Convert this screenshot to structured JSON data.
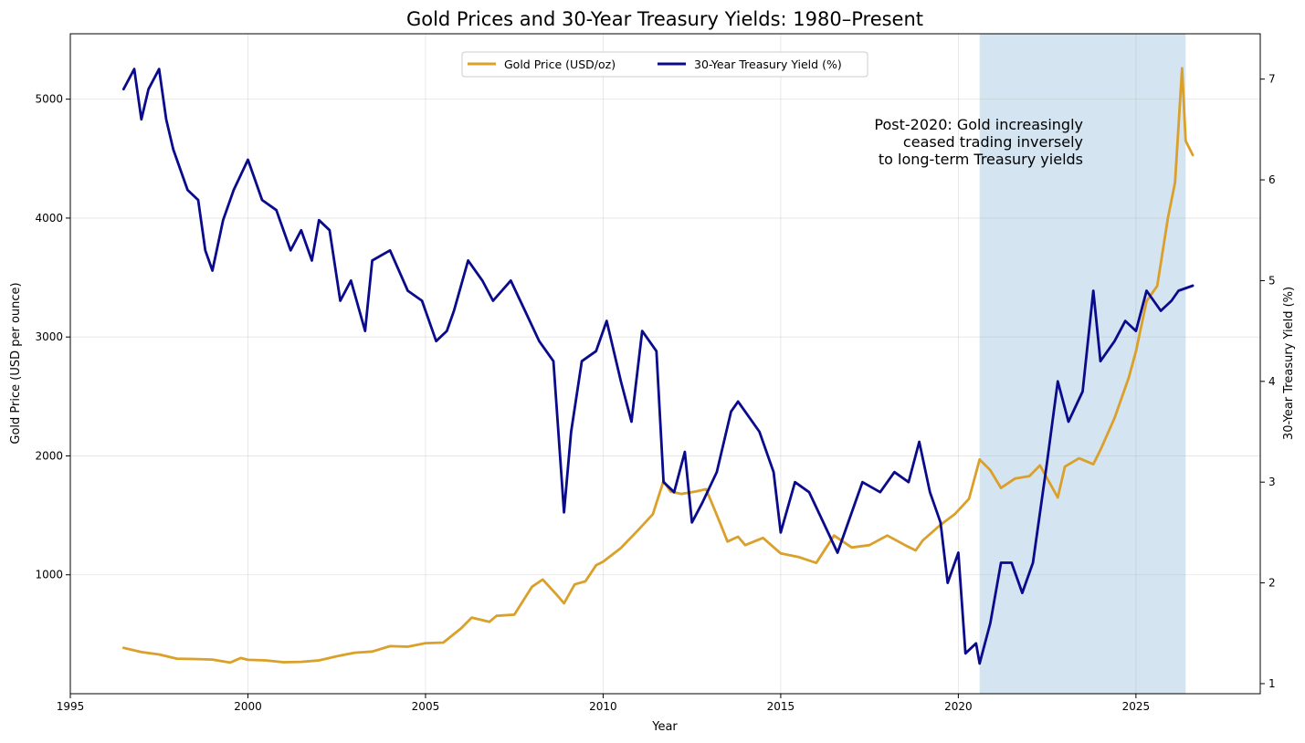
{
  "chart_data": {
    "type": "line",
    "title": "Gold Prices and 30-Year Treasury Yields: 1980–Present",
    "xlabel": "Year",
    "ylabel": "Gold Price (USD per ounce)",
    "y2label": "30-Year Treasury Yield (%)",
    "xlim": [
      1995,
      2028.5
    ],
    "ylim": [
      0,
      5550
    ],
    "y2lim": [
      0.9,
      7.45
    ],
    "x_ticks": [
      1995,
      2000,
      2005,
      2010,
      2015,
      2020,
      2025
    ],
    "y_ticks": [
      1000,
      2000,
      3000,
      4000,
      5000
    ],
    "y2_ticks": [
      1,
      2,
      3,
      4,
      5,
      6,
      7
    ],
    "grid": true,
    "legend_position": "upper center",
    "shaded_region": {
      "x_start": 2020.6,
      "x_end": 2026.4,
      "color": "#d4e4f0"
    },
    "annotation": "Post-2020: Gold increasingly\nceased trading inversely\nto long-term Treasury yields",
    "series": [
      {
        "name": "Gold Price (USD/oz)",
        "axis": "left",
        "color": "#daa02a",
        "points": [
          [
            1996.5,
            385
          ],
          [
            1997.0,
            350
          ],
          [
            1997.5,
            330
          ],
          [
            1998.0,
            295
          ],
          [
            1998.5,
            292
          ],
          [
            1999.0,
            287
          ],
          [
            1999.5,
            262
          ],
          [
            1999.8,
            300
          ],
          [
            2000.0,
            285
          ],
          [
            2000.5,
            280
          ],
          [
            2001.0,
            265
          ],
          [
            2001.5,
            268
          ],
          [
            2002.0,
            280
          ],
          [
            2002.5,
            315
          ],
          [
            2003.0,
            345
          ],
          [
            2003.5,
            355
          ],
          [
            2004.0,
            400
          ],
          [
            2004.5,
            395
          ],
          [
            2005.0,
            425
          ],
          [
            2005.5,
            430
          ],
          [
            2006.0,
            550
          ],
          [
            2006.3,
            640
          ],
          [
            2006.8,
            605
          ],
          [
            2007.0,
            655
          ],
          [
            2007.5,
            665
          ],
          [
            2008.0,
            900
          ],
          [
            2008.3,
            960
          ],
          [
            2008.7,
            830
          ],
          [
            2008.9,
            760
          ],
          [
            2009.2,
            920
          ],
          [
            2009.5,
            945
          ],
          [
            2009.8,
            1080
          ],
          [
            2010.0,
            1110
          ],
          [
            2010.5,
            1225
          ],
          [
            2011.0,
            1380
          ],
          [
            2011.4,
            1510
          ],
          [
            2011.7,
            1790
          ],
          [
            2011.9,
            1700
          ],
          [
            2012.2,
            1680
          ],
          [
            2012.6,
            1700
          ],
          [
            2012.9,
            1720
          ],
          [
            2013.3,
            1430
          ],
          [
            2013.5,
            1280
          ],
          [
            2013.8,
            1320
          ],
          [
            2014.0,
            1250
          ],
          [
            2014.5,
            1310
          ],
          [
            2015.0,
            1180
          ],
          [
            2015.5,
            1150
          ],
          [
            2016.0,
            1100
          ],
          [
            2016.5,
            1330
          ],
          [
            2017.0,
            1230
          ],
          [
            2017.5,
            1250
          ],
          [
            2018.0,
            1330
          ],
          [
            2018.5,
            1250
          ],
          [
            2018.8,
            1205
          ],
          [
            2019.0,
            1290
          ],
          [
            2019.5,
            1420
          ],
          [
            2019.9,
            1510
          ],
          [
            2020.3,
            1640
          ],
          [
            2020.6,
            1970
          ],
          [
            2020.9,
            1880
          ],
          [
            2021.2,
            1730
          ],
          [
            2021.6,
            1810
          ],
          [
            2022.0,
            1830
          ],
          [
            2022.3,
            1920
          ],
          [
            2022.8,
            1650
          ],
          [
            2023.0,
            1910
          ],
          [
            2023.4,
            1980
          ],
          [
            2023.8,
            1930
          ],
          [
            2024.0,
            2050
          ],
          [
            2024.4,
            2320
          ],
          [
            2024.8,
            2660
          ],
          [
            2025.0,
            2880
          ],
          [
            2025.3,
            3300
          ],
          [
            2025.6,
            3430
          ],
          [
            2025.9,
            4000
          ],
          [
            2026.1,
            4300
          ],
          [
            2026.3,
            5260
          ],
          [
            2026.4,
            4650
          ],
          [
            2026.6,
            4530
          ]
        ]
      },
      {
        "name": "30-Year Treasury Yield (%)",
        "axis": "right",
        "color": "#0a0a8c",
        "points": [
          [
            1996.5,
            6.9
          ],
          [
            1996.8,
            7.1
          ],
          [
            1997.0,
            6.6
          ],
          [
            1997.2,
            6.9
          ],
          [
            1997.5,
            7.1
          ],
          [
            1997.7,
            6.6
          ],
          [
            1997.9,
            6.3
          ],
          [
            1998.3,
            5.9
          ],
          [
            1998.6,
            5.8
          ],
          [
            1998.8,
            5.3
          ],
          [
            1999.0,
            5.1
          ],
          [
            1999.3,
            5.6
          ],
          [
            1999.6,
            5.9
          ],
          [
            2000.0,
            6.2
          ],
          [
            2000.2,
            6.0
          ],
          [
            2000.4,
            5.8
          ],
          [
            2000.8,
            5.7
          ],
          [
            2001.2,
            5.3
          ],
          [
            2001.5,
            5.5
          ],
          [
            2001.8,
            5.2
          ],
          [
            2002.0,
            5.6
          ],
          [
            2002.3,
            5.5
          ],
          [
            2002.6,
            4.8
          ],
          [
            2002.9,
            5.0
          ],
          [
            2003.3,
            4.5
          ],
          [
            2003.5,
            5.2
          ],
          [
            2004.0,
            5.3
          ],
          [
            2004.5,
            4.9
          ],
          [
            2004.9,
            4.8
          ],
          [
            2005.3,
            4.4
          ],
          [
            2005.6,
            4.5
          ],
          [
            2005.8,
            4.7
          ],
          [
            2006.2,
            5.2
          ],
          [
            2006.6,
            5.0
          ],
          [
            2006.9,
            4.8
          ],
          [
            2007.4,
            5.0
          ],
          [
            2007.8,
            4.7
          ],
          [
            2008.2,
            4.4
          ],
          [
            2008.6,
            4.2
          ],
          [
            2008.9,
            2.7
          ],
          [
            2009.1,
            3.5
          ],
          [
            2009.4,
            4.2
          ],
          [
            2009.8,
            4.3
          ],
          [
            2010.1,
            4.6
          ],
          [
            2010.5,
            4.0
          ],
          [
            2010.8,
            3.6
          ],
          [
            2011.1,
            4.5
          ],
          [
            2011.5,
            4.3
          ],
          [
            2011.7,
            3.0
          ],
          [
            2012.0,
            2.9
          ],
          [
            2012.3,
            3.3
          ],
          [
            2012.5,
            2.6
          ],
          [
            2012.8,
            2.8
          ],
          [
            2013.2,
            3.1
          ],
          [
            2013.6,
            3.7
          ],
          [
            2013.8,
            3.8
          ],
          [
            2014.0,
            3.7
          ],
          [
            2014.4,
            3.5
          ],
          [
            2014.8,
            3.1
          ],
          [
            2015.0,
            2.5
          ],
          [
            2015.4,
            3.0
          ],
          [
            2015.8,
            2.9
          ],
          [
            2016.2,
            2.6
          ],
          [
            2016.6,
            2.3
          ],
          [
            2016.9,
            2.6
          ],
          [
            2017.3,
            3.0
          ],
          [
            2017.8,
            2.9
          ],
          [
            2018.2,
            3.1
          ],
          [
            2018.6,
            3.0
          ],
          [
            2018.9,
            3.4
          ],
          [
            2019.2,
            2.9
          ],
          [
            2019.5,
            2.6
          ],
          [
            2019.7,
            2.0
          ],
          [
            2020.0,
            2.3
          ],
          [
            2020.2,
            1.3
          ],
          [
            2020.5,
            1.4
          ],
          [
            2020.6,
            1.2
          ],
          [
            2020.9,
            1.6
          ],
          [
            2021.2,
            2.2
          ],
          [
            2021.5,
            2.2
          ],
          [
            2021.8,
            1.9
          ],
          [
            2022.1,
            2.2
          ],
          [
            2022.5,
            3.2
          ],
          [
            2022.8,
            4.0
          ],
          [
            2023.1,
            3.6
          ],
          [
            2023.5,
            3.9
          ],
          [
            2023.8,
            4.9
          ],
          [
            2024.0,
            4.2
          ],
          [
            2024.4,
            4.4
          ],
          [
            2024.7,
            4.6
          ],
          [
            2025.0,
            4.5
          ],
          [
            2025.3,
            4.9
          ],
          [
            2025.7,
            4.7
          ],
          [
            2026.0,
            4.8
          ],
          [
            2026.2,
            4.9
          ],
          [
            2026.6,
            4.95
          ]
        ]
      }
    ]
  }
}
